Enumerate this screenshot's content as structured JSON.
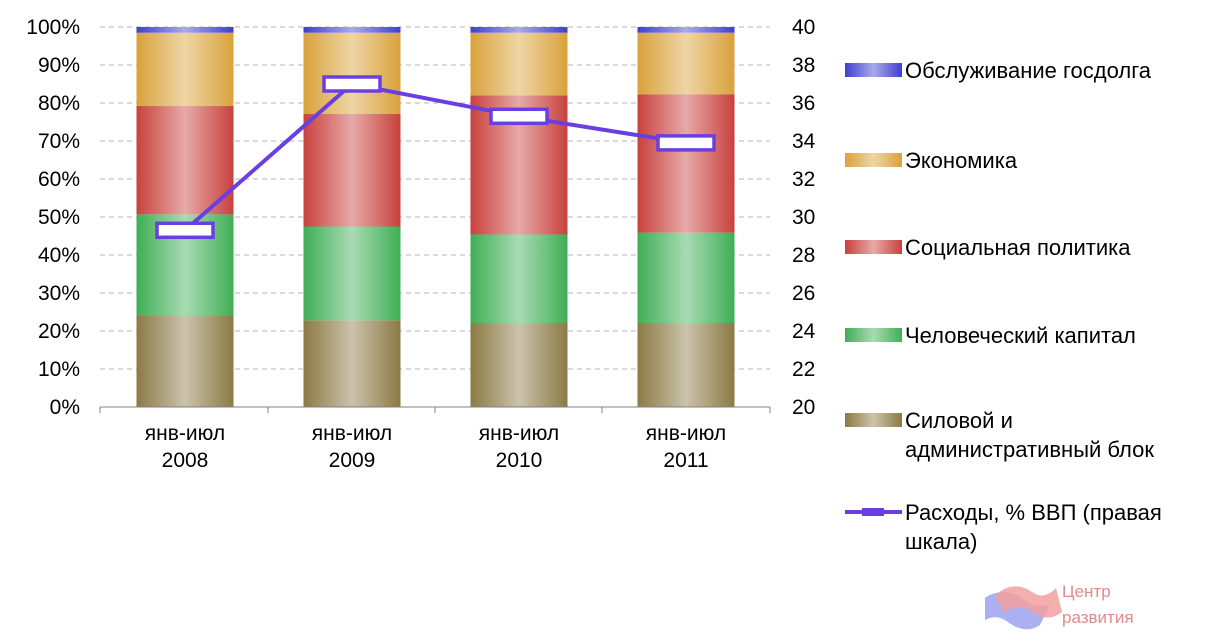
{
  "chart_data": {
    "type": "bar",
    "stacked": true,
    "percent_stacked": true,
    "categories": [
      [
        "янв-июл",
        "2008"
      ],
      [
        "янв-июл",
        "2009"
      ],
      [
        "янв-июл",
        "2010"
      ],
      [
        "янв-июл",
        "2011"
      ]
    ],
    "series": [
      {
        "name": "Силовой и административный блок",
        "values": [
          24.2,
          22.8,
          22.1,
          22.1
        ],
        "color": "#8b7a45"
      },
      {
        "name": "Человеческий капитал",
        "values": [
          26.5,
          24.7,
          23.3,
          23.8
        ],
        "color": "#3fae55"
      },
      {
        "name": "Социальная политика",
        "values": [
          28.5,
          29.6,
          36.6,
          36.4
        ],
        "color": "#c8413d"
      },
      {
        "name": "Экономика",
        "values": [
          19.3,
          21.4,
          16.5,
          16.2
        ],
        "color": "#d9a23a"
      },
      {
        "name": "Обслуживание госдолга",
        "values": [
          1.5,
          1.5,
          1.5,
          1.5
        ],
        "color": "#3f3fd0"
      }
    ],
    "line_series": {
      "name": "Расходы, % ВВП  (правая шкала)",
      "values": [
        29.3,
        37.0,
        35.3,
        33.9
      ],
      "axis": "right",
      "color": "#6a3fe0"
    },
    "y_left": {
      "ticks": [
        "0%",
        "10%",
        "20%",
        "30%",
        "40%",
        "50%",
        "60%",
        "70%",
        "80%",
        "90%",
        "100%"
      ],
      "ylim": [
        0,
        100
      ]
    },
    "y_right": {
      "ticks": [
        "20",
        "22",
        "24",
        "26",
        "28",
        "30",
        "32",
        "34",
        "36",
        "38",
        "40"
      ],
      "ylim": [
        20,
        40
      ]
    },
    "grid": "dashed-horizontal",
    "legend": {
      "position": "right",
      "entries": [
        {
          "lines": [
            "Обслуживание госдолга"
          ],
          "kind": "bar",
          "series_index": 4
        },
        {
          "lines": [
            "Экономика"
          ],
          "kind": "bar",
          "series_index": 3
        },
        {
          "lines": [
            "Социальная политика"
          ],
          "kind": "bar",
          "series_index": 2
        },
        {
          "lines": [
            "Человеческий капитал"
          ],
          "kind": "bar",
          "series_index": 1
        },
        {
          "lines": [
            "Силовой и",
            "административный блок"
          ],
          "kind": "bar",
          "series_index": 0
        },
        {
          "lines": [
            "Расходы, % ВВП  (правая",
            "шкала)"
          ],
          "kind": "line"
        }
      ]
    }
  },
  "logo": {
    "line1": "Центр",
    "line2": "развития"
  }
}
